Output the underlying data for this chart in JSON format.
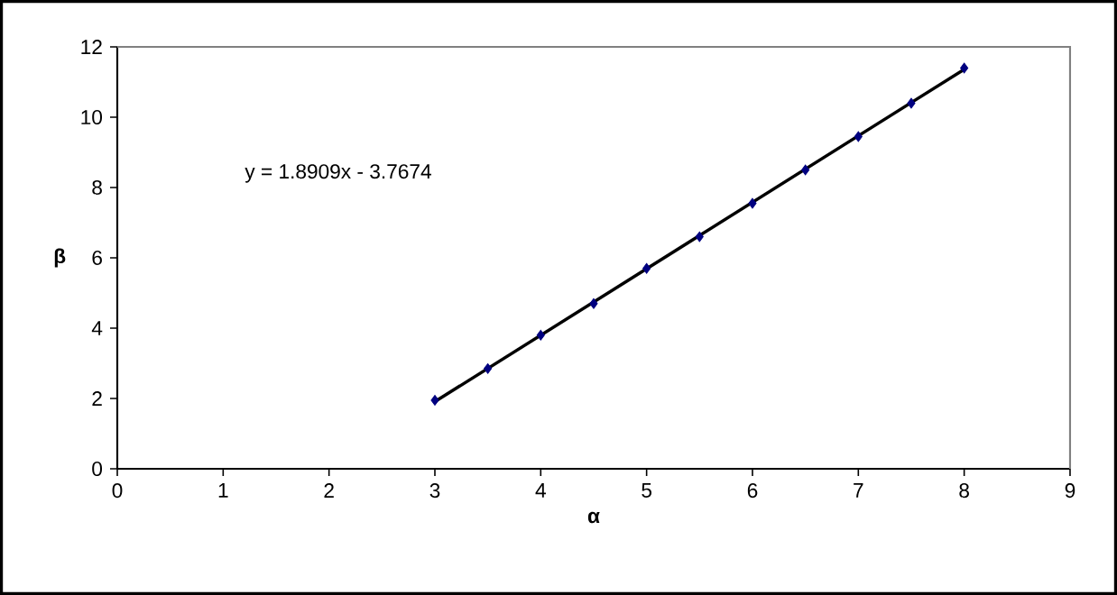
{
  "chart_data": {
    "type": "scatter",
    "xlabel": "α",
    "ylabel": "β",
    "xlim": [
      0,
      9
    ],
    "xticks": [
      0,
      1,
      2,
      3,
      4,
      5,
      6,
      7,
      8,
      9
    ],
    "ylim": [
      0,
      12
    ],
    "yticks": [
      0,
      2,
      4,
      6,
      8,
      10,
      12
    ],
    "grid": false,
    "marker": "diamond",
    "annotations": [
      "y = 1.8909x - 3.7674"
    ],
    "series": [
      {
        "color": "#000080",
        "x": [
          3,
          3.5,
          4,
          4.5,
          5,
          5.5,
          6,
          6.5,
          7,
          7.5,
          8
        ],
        "values": [
          1.95,
          2.85,
          3.8,
          4.7,
          5.7,
          6.6,
          7.55,
          8.5,
          9.45,
          10.4,
          11.4
        ]
      },
      {
        "type": "line",
        "color": "#000000",
        "marker": "none",
        "line_style": "solid",
        "x": [
          3,
          8
        ],
        "values": [
          1.91,
          11.36
        ]
      }
    ]
  }
}
